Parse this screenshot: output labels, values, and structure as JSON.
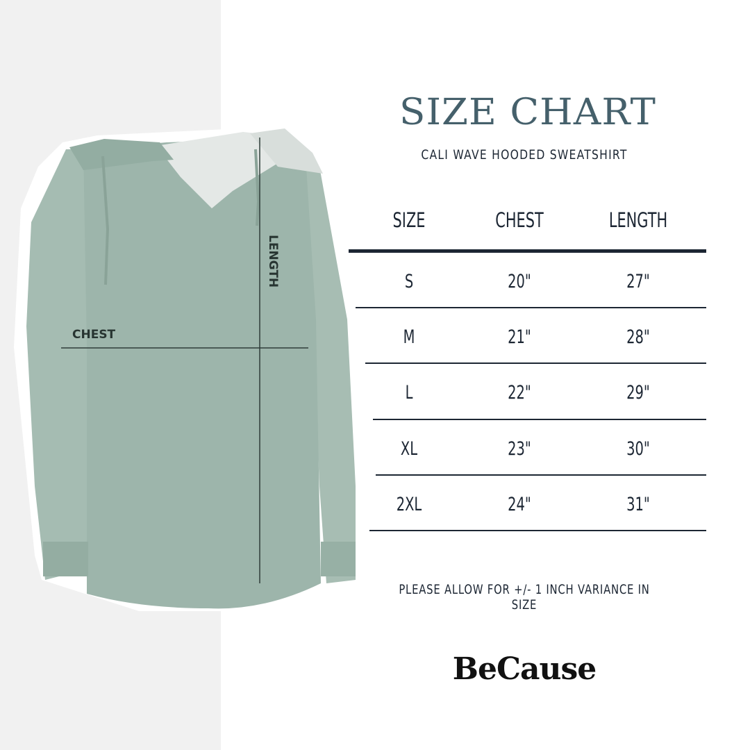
{
  "header": {
    "title": "SIZE CHART",
    "subtitle": "CALI WAVE HOODED SWEATSHIRT"
  },
  "diagram": {
    "chest_label": "CHEST",
    "length_label": "LENGTH",
    "garment_color": "#9db5ab"
  },
  "table": {
    "columns": [
      "SIZE",
      "CHEST",
      "LENGTH"
    ],
    "rows": [
      [
        "S",
        "20\"",
        "27\""
      ],
      [
        "M",
        "21\"",
        "28\""
      ],
      [
        "L",
        "22\"",
        "29\""
      ],
      [
        "XL",
        "23\"",
        "30\""
      ],
      [
        "2XL",
        "24\"",
        "31\""
      ]
    ]
  },
  "note": "PLEASE ALLOW FOR +/- 1 INCH VARIANCE IN SIZE",
  "brand": "BeCause",
  "colors": {
    "title": "#45606b",
    "text": "#1c2633",
    "panel": "#f1f1f1"
  }
}
